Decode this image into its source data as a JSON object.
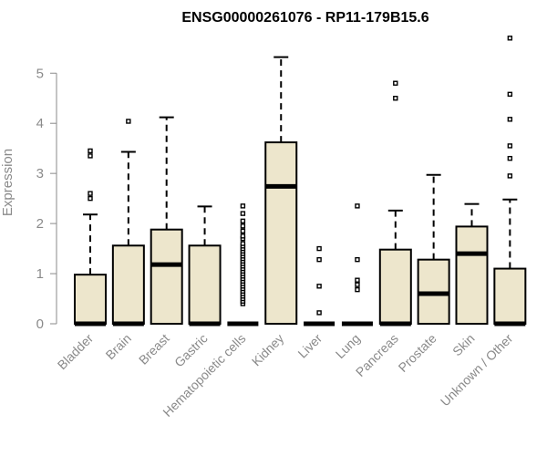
{
  "chart_data": {
    "type": "boxplot",
    "title": "ENSG00000261076 - RP11-179B15.6",
    "xlabel": "",
    "ylabel": "Expression",
    "ylim": [
      0,
      5.8
    ],
    "yticks": [
      0,
      1,
      2,
      3,
      4,
      5
    ],
    "box_color": "#ede6cc",
    "categories": [
      "Bladder",
      "Brain",
      "Breast",
      "Gastric",
      "Hematopoietic cells",
      "Kidney",
      "Liver",
      "Lung",
      "Pancreas",
      "Prostate",
      "Skin",
      "Unknown / Other"
    ],
    "boxes": [
      {
        "q1": 0,
        "median": 0,
        "q3": 0.98,
        "whisker_low": 0,
        "whisker_high": 2.18,
        "outliers": [
          2.5,
          2.6,
          3.35,
          3.45
        ]
      },
      {
        "q1": 0,
        "median": 0,
        "q3": 1.56,
        "whisker_low": 0,
        "whisker_high": 3.43,
        "outliers": [
          4.04
        ]
      },
      {
        "q1": 0,
        "median": 1.18,
        "q3": 1.88,
        "whisker_low": 0,
        "whisker_high": 4.12,
        "outliers": []
      },
      {
        "q1": 0,
        "median": 0,
        "q3": 1.56,
        "whisker_low": 0,
        "whisker_high": 2.34,
        "outliers": []
      },
      {
        "q1": 0,
        "median": 0,
        "q3": 0,
        "whisker_low": 0,
        "whisker_high": 0,
        "outliers": [
          0.4,
          0.45,
          0.5,
          0.55,
          0.6,
          0.65,
          0.7,
          0.75,
          0.8,
          0.85,
          0.9,
          0.95,
          1.0,
          1.05,
          1.1,
          1.15,
          1.2,
          1.25,
          1.3,
          1.35,
          1.4,
          1.45,
          1.5,
          1.55,
          1.6,
          1.7,
          1.75,
          1.85,
          1.95,
          2.05,
          2.2,
          2.35
        ]
      },
      {
        "q1": 0,
        "median": 2.74,
        "q3": 3.62,
        "whisker_low": 0,
        "whisker_high": 5.32,
        "outliers": []
      },
      {
        "q1": 0,
        "median": 0,
        "q3": 0,
        "whisker_low": 0,
        "whisker_high": 0,
        "outliers": [
          0.22,
          0.75,
          1.28,
          1.5
        ]
      },
      {
        "q1": 0,
        "median": 0,
        "q3": 0,
        "whisker_low": 0,
        "whisker_high": 0,
        "outliers": [
          0.68,
          0.78,
          0.87,
          1.28,
          2.35
        ]
      },
      {
        "q1": 0,
        "median": 0,
        "q3": 1.48,
        "whisker_low": 0,
        "whisker_high": 2.26,
        "outliers": [
          4.5,
          4.8
        ]
      },
      {
        "q1": 0,
        "median": 0.6,
        "q3": 1.28,
        "whisker_low": 0,
        "whisker_high": 2.97,
        "outliers": []
      },
      {
        "q1": 0,
        "median": 1.4,
        "q3": 1.94,
        "whisker_low": 0,
        "whisker_high": 2.39,
        "outliers": []
      },
      {
        "q1": 0,
        "median": 0,
        "q3": 1.1,
        "whisker_low": 0,
        "whisker_high": 2.48,
        "outliers": [
          2.95,
          3.3,
          3.55,
          4.08,
          4.58,
          5.7
        ]
      }
    ]
  }
}
